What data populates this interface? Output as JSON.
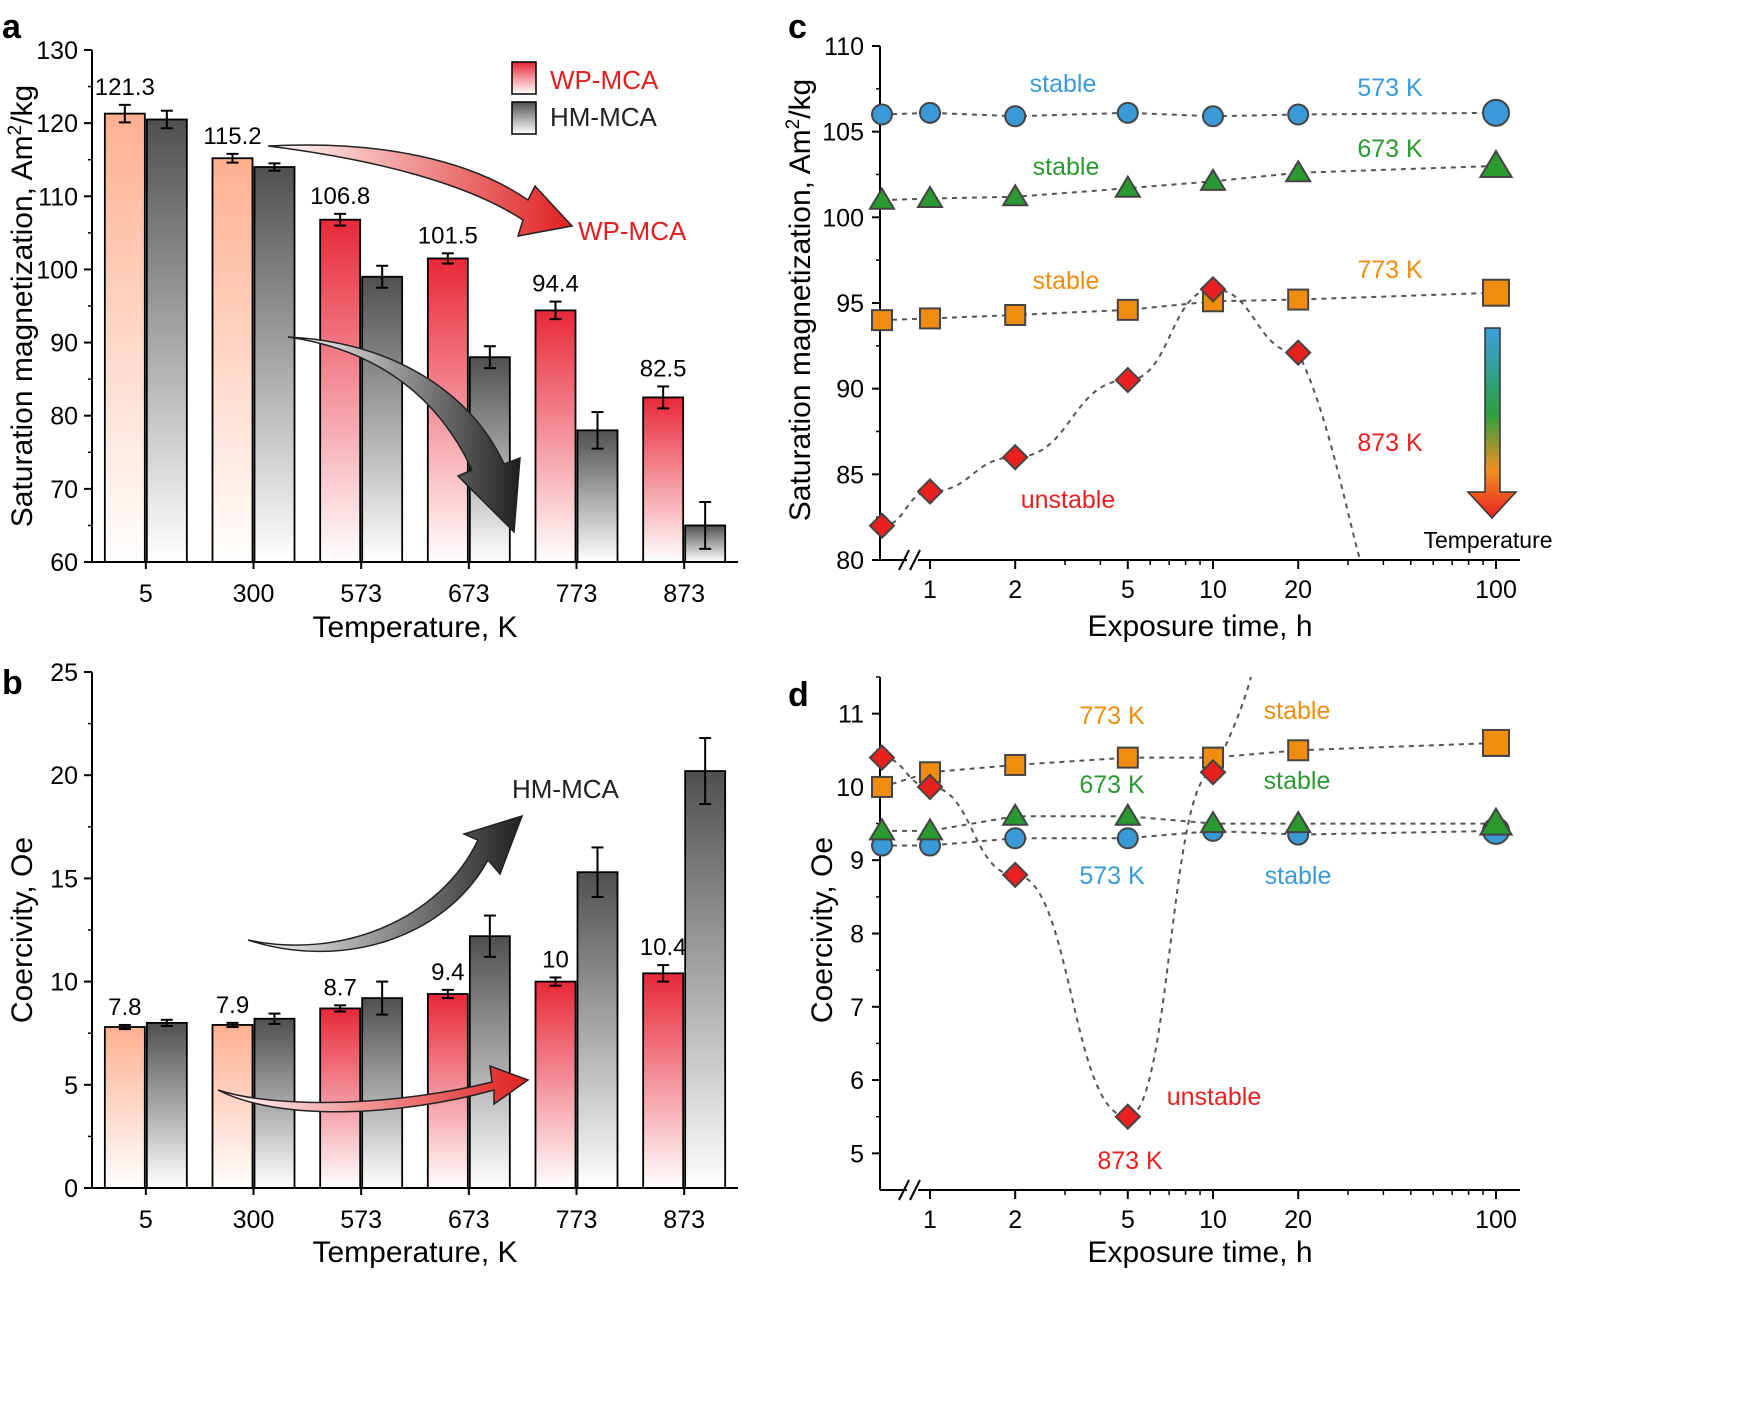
{
  "colors": {
    "wp_top": "#ff9a80",
    "wp_mid": "#e83040",
    "wp_dark": "#c81828",
    "hm": "#606060",
    "blue": "#3a9ad8",
    "green": "#2a9a30",
    "orange": "#f08c10",
    "red": "#e82020",
    "marker_edge": "#444444"
  },
  "chart_data": [
    {
      "panel": "a",
      "type": "bar",
      "title": "",
      "xlabel": "Temperature, K",
      "ylabel": "Saturation magnetization, Am²/kg",
      "ylim": [
        60,
        130
      ],
      "yticks": [
        60,
        70,
        80,
        90,
        100,
        110,
        120,
        130
      ],
      "categories": [
        "5",
        "300",
        "573",
        "673",
        "773",
        "873"
      ],
      "series": [
        {
          "name": "WP-MCA",
          "values": [
            121.3,
            115.2,
            106.8,
            101.5,
            94.4,
            82.5
          ],
          "errors": [
            1.2,
            0.6,
            0.8,
            0.7,
            1.2,
            1.5
          ]
        },
        {
          "name": "HM-MCA",
          "values": [
            120.5,
            114.0,
            99.0,
            88.0,
            78.0,
            65.0
          ],
          "errors": [
            1.2,
            0.5,
            1.5,
            1.5,
            2.5,
            3.2
          ]
        }
      ],
      "data_labels": [
        "121.3",
        "115.2",
        "106.8",
        "101.5",
        "94.4",
        "82.5"
      ],
      "annotations": [
        "WP-MCA"
      ],
      "legend": [
        "WP-MCA",
        "HM-MCA"
      ]
    },
    {
      "panel": "b",
      "type": "bar",
      "xlabel": "Temperature, K",
      "ylabel": "Coercivity, Oe",
      "ylim": [
        0,
        25
      ],
      "yticks": [
        0,
        5,
        10,
        15,
        20,
        25
      ],
      "categories": [
        "5",
        "300",
        "573",
        "673",
        "773",
        "873"
      ],
      "series": [
        {
          "name": "WP-MCA",
          "values": [
            7.8,
            7.9,
            8.7,
            9.4,
            10.0,
            10.4
          ],
          "errors": [
            0.1,
            0.1,
            0.15,
            0.2,
            0.2,
            0.4
          ]
        },
        {
          "name": "HM-MCA",
          "values": [
            8.0,
            8.2,
            9.2,
            12.2,
            15.3,
            20.2
          ],
          "errors": [
            0.15,
            0.25,
            0.8,
            1.0,
            1.2,
            1.6
          ]
        }
      ],
      "data_labels": [
        "7.8",
        "7.9",
        "8.7",
        "9.4",
        "10",
        "10.4"
      ],
      "annotations": [
        "HM-MCA"
      ]
    },
    {
      "panel": "c",
      "type": "scatter",
      "xlabel": "Exposure time, h",
      "ylabel": "Saturation magnetization, Am²/kg",
      "ylim": [
        80,
        110
      ],
      "yticks": [
        80,
        85,
        90,
        95,
        100,
        105,
        110
      ],
      "xscale": "log",
      "xticks": [
        "1",
        "2",
        "5",
        "10",
        "20",
        "100"
      ],
      "series": [
        {
          "name": "573 K",
          "marker": "circle",
          "x": [
            0.5,
            1,
            2,
            5,
            10,
            20,
            100
          ],
          "y": [
            106.0,
            106.1,
            105.9,
            106.1,
            105.9,
            106.0,
            106.1
          ]
        },
        {
          "name": "673 K",
          "marker": "triangle",
          "x": [
            0.5,
            1,
            2,
            5,
            10,
            20,
            100
          ],
          "y": [
            101.0,
            101.1,
            101.2,
            101.7,
            102.1,
            102.6,
            103.0
          ]
        },
        {
          "name": "773 K",
          "marker": "square",
          "x": [
            0.5,
            1,
            2,
            5,
            10,
            20,
            100
          ],
          "y": [
            94.0,
            94.1,
            94.3,
            94.6,
            95.1,
            95.2,
            95.6
          ]
        },
        {
          "name": "873 K",
          "marker": "diamond",
          "x": [
            0.5,
            1,
            2,
            5,
            10,
            20
          ],
          "y": [
            82.0,
            84.0,
            86.0,
            90.5,
            95.8,
            92.1
          ]
        }
      ],
      "annotations": [
        "stable",
        "stable",
        "stable",
        "unstable",
        "573 K",
        "673 K",
        "773 K",
        "873 K",
        "Temperature"
      ]
    },
    {
      "panel": "d",
      "type": "scatter",
      "xlabel": "Exposure time, h",
      "ylabel": "Coercivity, Oe",
      "ylim": [
        4.5,
        11.5
      ],
      "yticks": [
        5,
        6,
        7,
        8,
        9,
        10,
        11
      ],
      "xscale": "log",
      "xticks": [
        "1",
        "2",
        "5",
        "10",
        "20",
        "100"
      ],
      "series": [
        {
          "name": "573 K",
          "marker": "circle",
          "x": [
            0.5,
            1,
            2,
            5,
            10,
            20,
            100
          ],
          "y": [
            9.2,
            9.2,
            9.3,
            9.3,
            9.4,
            9.35,
            9.4
          ]
        },
        {
          "name": "673 K",
          "marker": "triangle",
          "x": [
            0.5,
            1,
            2,
            5,
            10,
            20,
            100
          ],
          "y": [
            9.4,
            9.4,
            9.6,
            9.6,
            9.5,
            9.5,
            9.5
          ]
        },
        {
          "name": "773 K",
          "marker": "square",
          "x": [
            0.5,
            1,
            2,
            5,
            10,
            20,
            100
          ],
          "y": [
            10.0,
            10.2,
            10.3,
            10.4,
            10.4,
            10.5,
            10.6
          ]
        },
        {
          "name": "873 K",
          "marker": "diamond",
          "x": [
            0.5,
            1,
            2,
            5,
            10
          ],
          "y": [
            10.4,
            10.0,
            8.8,
            5.5,
            10.2
          ]
        }
      ],
      "annotations": [
        "773 K",
        "stable",
        "673 K",
        "stable",
        "573 K",
        "stable",
        "unstable",
        "873 K"
      ]
    }
  ],
  "panel_labels": [
    "a",
    "b",
    "c",
    "d"
  ]
}
